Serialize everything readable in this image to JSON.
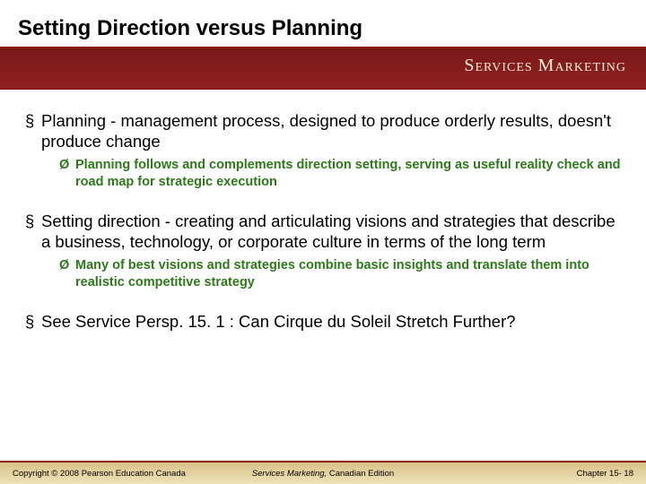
{
  "header": {
    "title": "Setting Direction versus Planning",
    "brand": "Services Marketing",
    "banner_bg_top": "#7a1818",
    "banner_bg_bottom": "#8f2020",
    "rule_color": "#8a1818",
    "title_color": "#000000",
    "title_fontsize": 24
  },
  "content": {
    "bullets": [
      {
        "level": 1,
        "text": "Planning - management process, designed to produce orderly results, doesn't produce change"
      },
      {
        "level": 2,
        "text": "Planning follows and complements direction setting, serving as useful reality check and road map for strategic execution"
      },
      {
        "level": 1,
        "text": "Setting direction - creating  and articulating visions and strategies that describe a business, technology, or corporate culture in terms of the long term"
      },
      {
        "level": 2,
        "text": "Many of best visions and strategies combine basic insights and translate them into realistic competitive strategy"
      },
      {
        "level": 1,
        "text": "See Service Persp. 15. 1 : Can Cirque du Soleil Stretch Further?"
      }
    ],
    "level1_marker": "§",
    "level1_color": "#000000",
    "level1_fontsize": 18.5,
    "level2_marker": "Ø",
    "level2_color": "#2e7a1a",
    "level2_fontsize": 14.5
  },
  "footer": {
    "left": "Copyright © 2008 Pearson Education Canada",
    "center_italic": "Services Marketing,",
    "center_rest": " Canadian Edition",
    "right": "Chapter 15- 18",
    "bg_top": "#d9c28a",
    "bg_bottom": "#efe2b8",
    "border_color": "#8a1818",
    "fontsize": 9.5
  }
}
